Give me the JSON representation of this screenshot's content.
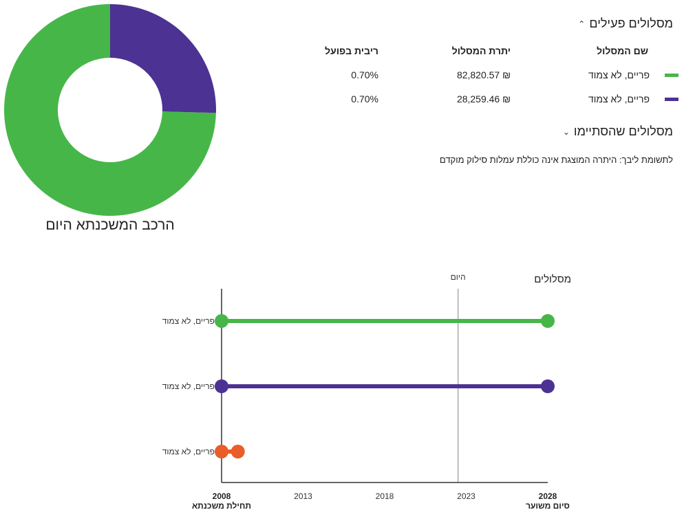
{
  "composition": {
    "title": "הרכב המשכנתא היום",
    "slices": [
      {
        "name": "פריים, לא צמוד",
        "value": 82820.57,
        "color": "#47b649"
      },
      {
        "name": "פריים, לא צמוד",
        "value": 28259.46,
        "color": "#4c3292"
      }
    ]
  },
  "active_tracks": {
    "title": "מסלולים פעילים",
    "headers": {
      "name": "שם המסלול",
      "balance": "יתרת המסלול",
      "rate": "ריבית בפועל"
    },
    "rows": [
      {
        "name": "פריים, לא צמוד",
        "balance": "82,820.57 ₪",
        "rate": "0.70%",
        "color": "#47b649"
      },
      {
        "name": "פריים, לא צמוד",
        "balance": "28,259.46 ₪",
        "rate": "0.70%",
        "color": "#4c3292"
      }
    ]
  },
  "finished_tracks": {
    "title": "מסלולים שהסתיימו"
  },
  "note": "לתשומת ליבך: היתרה המוצגת אינה כוללת עמלות סילוק מוקדם",
  "chart_data": {
    "type": "timeline",
    "title": "מסלולים",
    "today_label": "היום",
    "today_year": 2022.5,
    "x_range": [
      2008,
      2028
    ],
    "ticks": [
      {
        "year": 2008,
        "label": "2008",
        "sublabel": "תחילת משכנתא",
        "bold": true
      },
      {
        "year": 2013,
        "label": "2013",
        "sublabel": "",
        "bold": false
      },
      {
        "year": 2018,
        "label": "2018",
        "sublabel": "",
        "bold": false
      },
      {
        "year": 2023,
        "label": "2023",
        "sublabel": "",
        "bold": false
      },
      {
        "year": 2028,
        "label": "2028",
        "sublabel": "סיום משוער",
        "bold": true
      }
    ],
    "tracks": [
      {
        "name": "פריים, לא צמוד",
        "start": 2008,
        "end": 2028,
        "color": "#47b649"
      },
      {
        "name": "פריים, לא צמוד",
        "start": 2008,
        "end": 2028,
        "color": "#4c3292"
      },
      {
        "name": "פריים, לא צמוד",
        "start": 2008,
        "end": 2009,
        "color": "#e85d2a"
      }
    ]
  }
}
